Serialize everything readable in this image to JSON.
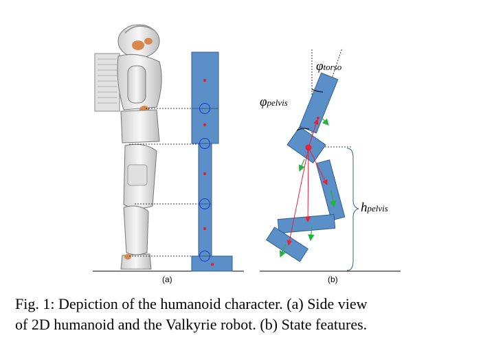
{
  "panel_a_label": "(a)",
  "panel_b_label": "(b)",
  "phi_torso": {
    "symbol": "φ",
    "subscript": "torso"
  },
  "phi_pelvis": {
    "symbol": "φ",
    "subscript": "pelvis"
  },
  "h_pelvis": {
    "symbol": "h",
    "subscript": "pelvis"
  },
  "caption_line1": "Fig. 1: Depiction of the humanoid character. (a) Side view",
  "caption_line2": "of 2D humanoid and the Valkyrie robot. (b) State features.",
  "colors": {
    "segment_fill": "#5b8fc7",
    "segment_stroke": "#2f5f93",
    "joint_ring": "#1a33c8",
    "com_dot": "#e8203a",
    "red_vector": "#e8203a",
    "green_vector": "#1fb43a",
    "robot_orange": "#d9874a"
  }
}
